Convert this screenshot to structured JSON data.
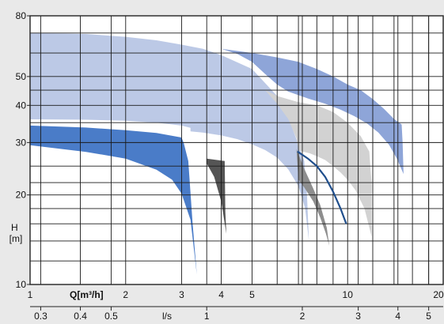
{
  "chart_data": {
    "type": "area",
    "x_scale": "log",
    "y_scale": "log",
    "xlim": [
      1,
      20
    ],
    "ylim": [
      10,
      80
    ],
    "grid": true,
    "y_ticks": [
      "80",
      "50",
      "40",
      "30",
      "20",
      "10"
    ],
    "ylabel": "H\n[m]",
    "x_ticks_primary": [
      "1",
      "2",
      "3",
      "4",
      "5",
      "10",
      "20"
    ],
    "xlabel_primary": "Q[m³/h]",
    "x_ticks_secondary": [
      "0.3",
      "0.4",
      "0.5",
      "1",
      "2",
      "3",
      "4",
      "5"
    ],
    "xlabel_secondary": "l/s",
    "series": [
      {
        "fill": "#4a7cc8",
        "polygon": [
          [
            1,
            34.2
          ],
          [
            1.5,
            33.7
          ],
          [
            2,
            33
          ],
          [
            2.5,
            32.3
          ],
          [
            3,
            31.2
          ],
          [
            3.05,
            29.8
          ],
          [
            3.15,
            26
          ],
          [
            3.25,
            16
          ],
          [
            3.35,
            10.8
          ],
          [
            3.2,
            16.5
          ],
          [
            3.0,
            20.2
          ],
          [
            2.8,
            22.5
          ],
          [
            2.5,
            24.3
          ],
          [
            2,
            26.5
          ],
          [
            1.5,
            27.9
          ],
          [
            1,
            29.4
          ]
        ]
      },
      {
        "fill": "#bcc9e6",
        "polygon": [
          [
            1,
            70
          ],
          [
            1.5,
            69.5
          ],
          [
            2,
            68
          ],
          [
            2.5,
            66.2
          ],
          [
            3,
            64
          ],
          [
            3.5,
            62
          ],
          [
            4,
            59
          ],
          [
            5,
            53
          ],
          [
            6,
            43
          ],
          [
            6.6,
            35
          ],
          [
            7,
            29.5
          ],
          [
            7.3,
            26
          ],
          [
            7.45,
            20
          ],
          [
            7.55,
            14
          ],
          [
            7.35,
            18
          ],
          [
            7.0,
            21.4
          ],
          [
            6.5,
            24.4
          ],
          [
            6.0,
            26.7
          ],
          [
            5.5,
            28.3
          ],
          [
            5.0,
            29.6
          ],
          [
            4.5,
            30.8
          ],
          [
            4.0,
            31.7
          ],
          [
            3.5,
            32.4
          ],
          [
            3.2,
            32.7
          ],
          [
            3.2,
            33.6
          ],
          [
            3,
            34.2
          ],
          [
            2.5,
            35
          ],
          [
            2,
            35.5
          ],
          [
            1.5,
            35.8
          ],
          [
            1,
            35.9
          ]
        ]
      },
      {
        "fill": "#d2d2d2",
        "polygon": [
          [
            5.5,
            45
          ],
          [
            6,
            43
          ],
          [
            7,
            41
          ],
          [
            8,
            40
          ],
          [
            9,
            38
          ],
          [
            10,
            35
          ],
          [
            11,
            31.5
          ],
          [
            11.7,
            28
          ],
          [
            11.9,
            22
          ],
          [
            11.9,
            14.5
          ],
          [
            11.3,
            18
          ],
          [
            10.6,
            20.7
          ],
          [
            10.0,
            22.5
          ],
          [
            9.5,
            23.8
          ],
          [
            9.0,
            25.0
          ],
          [
            8.5,
            26.2
          ],
          [
            8.0,
            27.0
          ],
          [
            7.6,
            27.6
          ],
          [
            7.2,
            28.0
          ],
          [
            7.0,
            28.4
          ],
          [
            6.9,
            31
          ],
          [
            6.5,
            36
          ],
          [
            6.0,
            40.5
          ]
        ]
      },
      {
        "fill": "#8ea5d8",
        "polygon": [
          [
            4,
            62
          ],
          [
            5,
            60
          ],
          [
            6,
            58
          ],
          [
            7,
            56
          ],
          [
            8,
            53
          ],
          [
            9,
            50
          ],
          [
            10,
            47
          ],
          [
            11,
            45
          ],
          [
            12,
            42
          ],
          [
            13,
            39
          ],
          [
            14,
            36
          ],
          [
            14.8,
            34.5
          ],
          [
            14.9,
            30
          ],
          [
            15.0,
            23.5
          ],
          [
            14.3,
            26.5
          ],
          [
            13.5,
            29.5
          ],
          [
            12.5,
            32.4
          ],
          [
            11.5,
            34.8
          ],
          [
            10.5,
            36.8
          ],
          [
            9.5,
            38.7
          ],
          [
            8.5,
            40.5
          ],
          [
            7.5,
            42.2
          ],
          [
            6.5,
            44.5
          ],
          [
            6.0,
            47
          ],
          [
            5.5,
            51
          ],
          [
            5.0,
            56
          ],
          [
            4.5,
            59.5
          ]
        ]
      },
      {
        "fill": "#555555",
        "polygon": [
          [
            3.6,
            26.5
          ],
          [
            4.1,
            26.0
          ],
          [
            4.12,
            17.5
          ],
          [
            4.15,
            14.8
          ],
          [
            4.0,
            19
          ],
          [
            3.8,
            23
          ],
          [
            3.6,
            25.5
          ]
        ]
      },
      {
        "fill": "#8e8e8e",
        "polygon": [
          [
            6.9,
            28.5
          ],
          [
            7.3,
            24.5
          ],
          [
            7.8,
            21.0
          ],
          [
            8.2,
            18.5
          ],
          [
            8.6,
            15.5
          ],
          [
            8.75,
            13.5
          ],
          [
            8.55,
            14.8
          ],
          [
            8.2,
            16.8
          ],
          [
            7.8,
            19.0
          ],
          [
            7.3,
            21.2
          ],
          [
            7.0,
            22.5
          ],
          [
            6.95,
            25.5
          ]
        ]
      }
    ],
    "line": {
      "color": "#1f4e8c",
      "points": [
        [
          6.95,
          28.0
        ],
        [
          7.5,
          26.5
        ],
        [
          8,
          25.0
        ],
        [
          8.5,
          23.0
        ],
        [
          9,
          20.5
        ],
        [
          9.5,
          18.0
        ],
        [
          9.9,
          16.0
        ]
      ]
    }
  }
}
